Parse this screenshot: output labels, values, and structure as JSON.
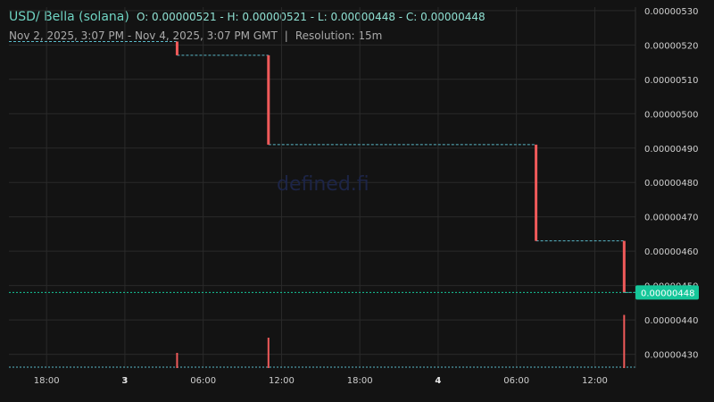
{
  "header": {
    "pair": "USD/ Bella (solana)",
    "ohlc": "O: 0.00000521 - H: 0.00000521 - L: 0.00000448 - C: 0.00000448",
    "range": "Nov 2, 2025, 3:07 PM - Nov 4, 2025, 3:07 PM GMT",
    "separator": "|",
    "resolution": "Resolution: 15m"
  },
  "watermark": "defined.fi",
  "last_price_label": "0.00000448",
  "colors": {
    "background": "#131313",
    "grid": "#2a2a2a",
    "step_line": "#5ab8c8",
    "down_candle": "#f05a5a",
    "last_price": "#16c79a"
  },
  "chart_data": {
    "type": "line",
    "title": "USD/ Bella (solana)",
    "x_tick_labels": [
      "18:00",
      "3",
      "06:00",
      "12:00",
      "18:00",
      "4",
      "06:00",
      "12:00"
    ],
    "y_tick_labels": [
      "0.00000530",
      "0.00000520",
      "0.00000510",
      "0.00000500",
      "0.00000490",
      "0.00000480",
      "0.00000470",
      "0.00000460",
      "0.00000450",
      "0.00000440",
      "0.00000430"
    ],
    "ylim": [
      4.26e-06,
      5.31e-06
    ],
    "xlim": [
      "2025-11-02 15:07",
      "2025-11-04 15:07"
    ],
    "grid": true,
    "series": [
      {
        "x": [
          "2025-11-02 15:07",
          "2025-11-03 04:00",
          "2025-11-03 11:00",
          "2025-11-04 07:30",
          "2025-11-04 14:15",
          "2025-11-04 15:07"
        ],
        "values": [
          5.21e-06,
          5.17e-06,
          4.91e-06,
          4.63e-06,
          4.48e-06,
          4.48e-06
        ]
      }
    ],
    "down_moves": [
      {
        "x": "2025-11-03 04:00",
        "open": 5.21e-06,
        "close": 5.17e-06
      },
      {
        "x": "2025-11-03 11:00",
        "open": 5.17e-06,
        "close": 4.91e-06
      },
      {
        "x": "2025-11-04 07:30",
        "open": 4.91e-06,
        "close": 4.63e-06
      },
      {
        "x": "2025-11-04 14:15",
        "open": 4.63e-06,
        "close": 4.48e-06
      }
    ],
    "volume": [
      {
        "x": "2025-11-03 04:00",
        "level": 0.2
      },
      {
        "x": "2025-11-03 11:00",
        "level": 0.4
      },
      {
        "x": "2025-11-04 14:15",
        "level": 0.7
      }
    ],
    "last_price": 4.48e-06
  }
}
